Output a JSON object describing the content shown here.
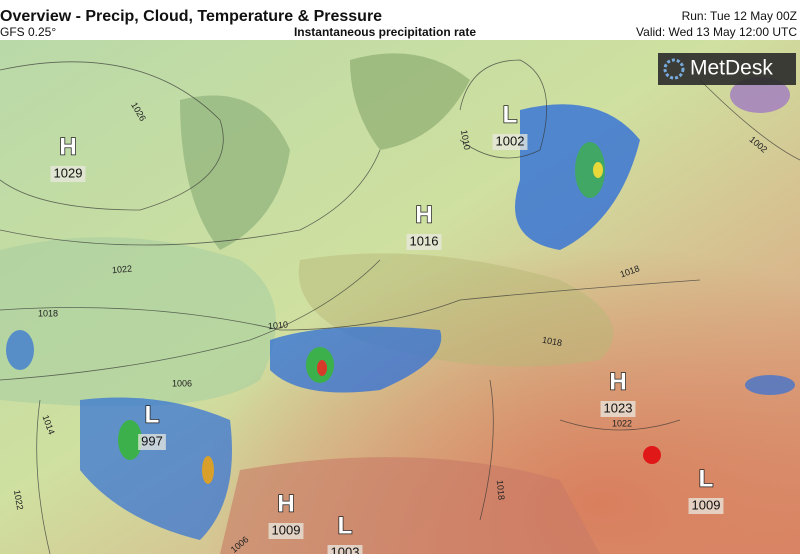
{
  "header": {
    "title": "Overview - Precip, Cloud, Temperature & Pressure",
    "model": "GFS 0.25°",
    "product": "Instantaneous precipitation rate",
    "run": "Run: Tue 12 May 00Z",
    "valid": "Valid: Wed 13 May 12:00 UTC"
  },
  "logo": "MetDesk",
  "pressure_centers": [
    {
      "type": "H",
      "value": 1029
    },
    {
      "type": "H",
      "value": 1016
    },
    {
      "type": "L",
      "value": 1002
    },
    {
      "type": "L",
      "value": 997
    },
    {
      "type": "H",
      "value": 1023
    },
    {
      "type": "L",
      "value": 1009
    },
    {
      "type": "H",
      "value": 1009
    },
    {
      "type": "L",
      "value": 1003
    }
  ],
  "isobar_labels": [
    1026,
    1022,
    1018,
    1010,
    1006,
    1014,
    1022,
    1010,
    1002,
    1018,
    1018,
    1022,
    1018,
    1006
  ]
}
